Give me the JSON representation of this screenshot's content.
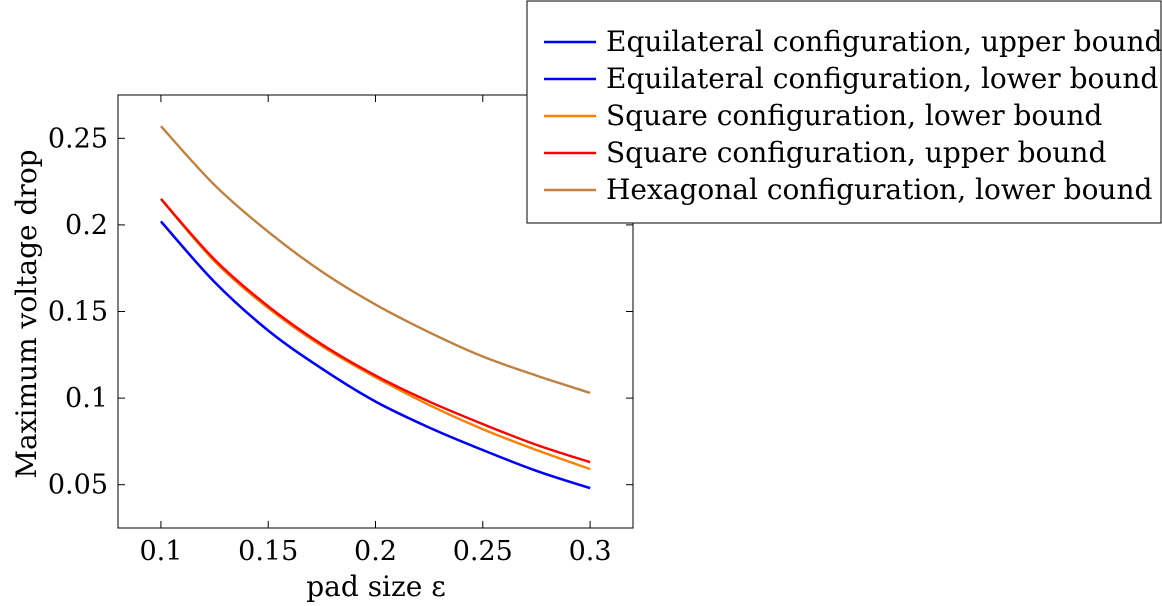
{
  "chart_data": {
    "type": "line",
    "title": "",
    "xlabel": "pad size ε",
    "ylabel": "Maximum voltage drop",
    "xlim": [
      0.08,
      0.32
    ],
    "ylim": [
      0.025,
      0.275
    ],
    "xticks": [
      0.1,
      0.15,
      0.2,
      0.25,
      0.3
    ],
    "xtick_labels": [
      "0.1",
      "0.15",
      "0.2",
      "0.25",
      "0.3"
    ],
    "yticks": [
      0.05,
      0.1,
      0.15,
      0.2,
      0.25
    ],
    "ytick_labels": [
      "0.05",
      "0.1",
      "0.15",
      "0.2",
      "0.25"
    ],
    "grid": false,
    "legend_position": "top-right, outside plot area",
    "x": [
      0.1,
      0.125,
      0.15,
      0.175,
      0.2,
      0.225,
      0.25,
      0.275,
      0.3
    ],
    "series": [
      {
        "name": "Equilateral configuration, upper bound",
        "color": "#0000ff",
        "values": [
          0.202,
          0.167,
          0.139,
          0.117,
          0.098,
          0.083,
          0.07,
          0.058,
          0.048
        ]
      },
      {
        "name": "Equilateral configuration, lower bound",
        "color": "#0000ff",
        "values": [
          0.202,
          0.167,
          0.139,
          0.117,
          0.098,
          0.083,
          0.07,
          0.058,
          0.048
        ]
      },
      {
        "name": "Square configuration, lower bound",
        "color": "#ff8000",
        "values": [
          0.215,
          0.179,
          0.152,
          0.13,
          0.112,
          0.096,
          0.082,
          0.07,
          0.059
        ]
      },
      {
        "name": "Square configuration, upper bound",
        "color": "#ff0000",
        "values": [
          0.215,
          0.18,
          0.153,
          0.131,
          0.113,
          0.098,
          0.085,
          0.073,
          0.063
        ]
      },
      {
        "name": "Hexagonal configuration, lower bound",
        "color": "#bf8040",
        "values": [
          0.257,
          0.223,
          0.196,
          0.173,
          0.154,
          0.138,
          0.124,
          0.113,
          0.103
        ]
      }
    ]
  }
}
